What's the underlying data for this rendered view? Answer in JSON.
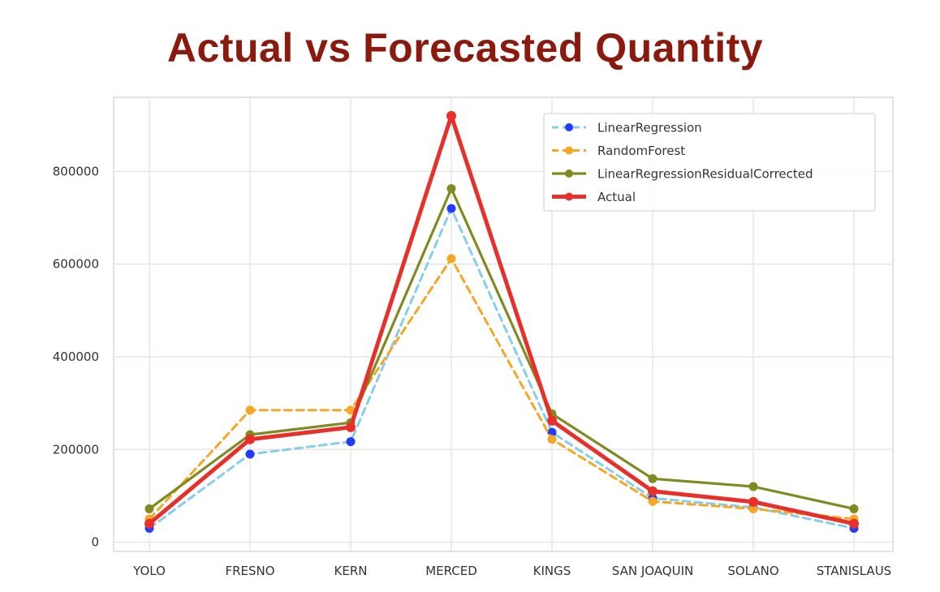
{
  "chart_data": {
    "type": "line",
    "title": "Actual vs Forecasted Quantity",
    "xlabel": "",
    "ylabel": "",
    "categories": [
      "YOLO",
      "FRESNO",
      "KERN",
      "MERCED",
      "KINGS",
      "SAN JOAQUIN",
      "SOLANO",
      "STANISLAUS"
    ],
    "ylim": [
      -20000,
      960000
    ],
    "yticks": [
      0,
      200000,
      400000,
      600000,
      800000
    ],
    "grid": true,
    "legend_position": "top-right",
    "series": [
      {
        "name": "LinearRegression",
        "color": "#87ceeb",
        "marker_color": "#1f3cff",
        "style": "dashed",
        "values": [
          30000,
          190000,
          217000,
          720000,
          237000,
          95000,
          75000,
          30000
        ]
      },
      {
        "name": "RandomForest",
        "color": "#f5a623",
        "marker_color": "#f5a623",
        "style": "dashed",
        "values": [
          50000,
          285000,
          285000,
          612000,
          222000,
          88000,
          72000,
          50000
        ]
      },
      {
        "name": "LinearRegressionResidualCorrected",
        "color": "#808a21",
        "marker_color": "#808a21",
        "style": "solid",
        "values": [
          72000,
          232000,
          258000,
          763000,
          277000,
          137000,
          120000,
          72000
        ]
      },
      {
        "name": "Actual",
        "color": "#e8302a",
        "marker_color": "#e8302a",
        "style": "solid-thick",
        "values": [
          40000,
          222000,
          248000,
          920000,
          262000,
          110000,
          87000,
          40000
        ]
      }
    ]
  }
}
